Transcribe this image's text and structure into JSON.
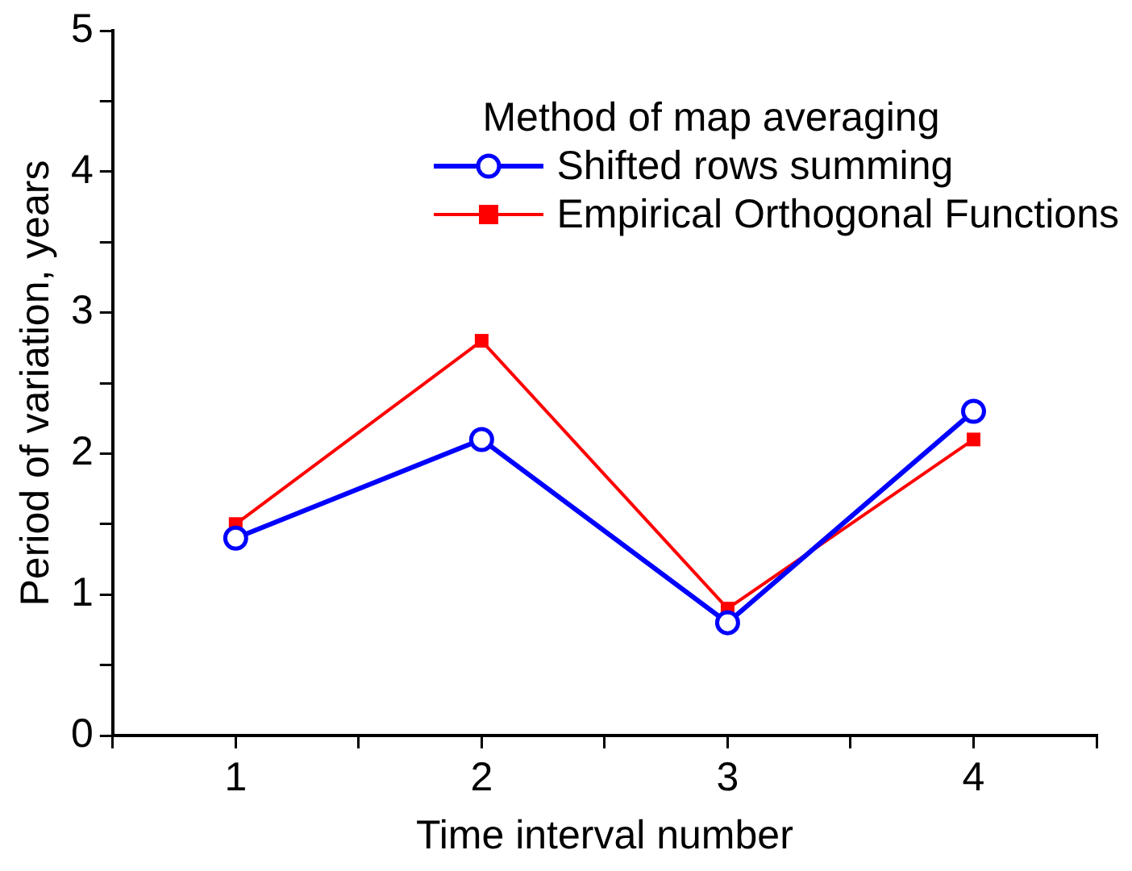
{
  "chart_data": {
    "type": "line",
    "xlabel": "Time interval number",
    "ylabel": "Period of variation, years",
    "legend_title": "Method of map averaging",
    "legend": "top right",
    "x": [
      1,
      2,
      3,
      4
    ],
    "xlim": [
      0.5,
      4.5
    ],
    "xticks": [
      {
        "value": 0.5,
        "label": null
      },
      1,
      {
        "value": 1.5,
        "label": null
      },
      2,
      {
        "value": 2.5,
        "label": null
      },
      3,
      {
        "value": 3.5,
        "label": null
      },
      4,
      {
        "value": 4.5,
        "label": null
      }
    ],
    "ylim": [
      0,
      5
    ],
    "yticks": [
      0,
      {
        "value": 0.5,
        "label": null
      },
      1,
      {
        "value": 1.5,
        "label": null
      },
      2,
      {
        "value": 2.5,
        "label": null
      },
      3,
      {
        "value": 3.5,
        "label": null
      },
      4,
      {
        "value": 4.5,
        "label": null
      },
      5
    ],
    "series": [
      {
        "name": "Shifted rows summing",
        "color": "#0000ff",
        "marker": "circle",
        "values": [
          1.4,
          2.1,
          0.8,
          2.3
        ]
      },
      {
        "name": "Empirical Orthogonal Functions",
        "color": "#ff0000",
        "marker": "square",
        "values": [
          1.5,
          2.8,
          0.9,
          2.1
        ]
      }
    ]
  }
}
